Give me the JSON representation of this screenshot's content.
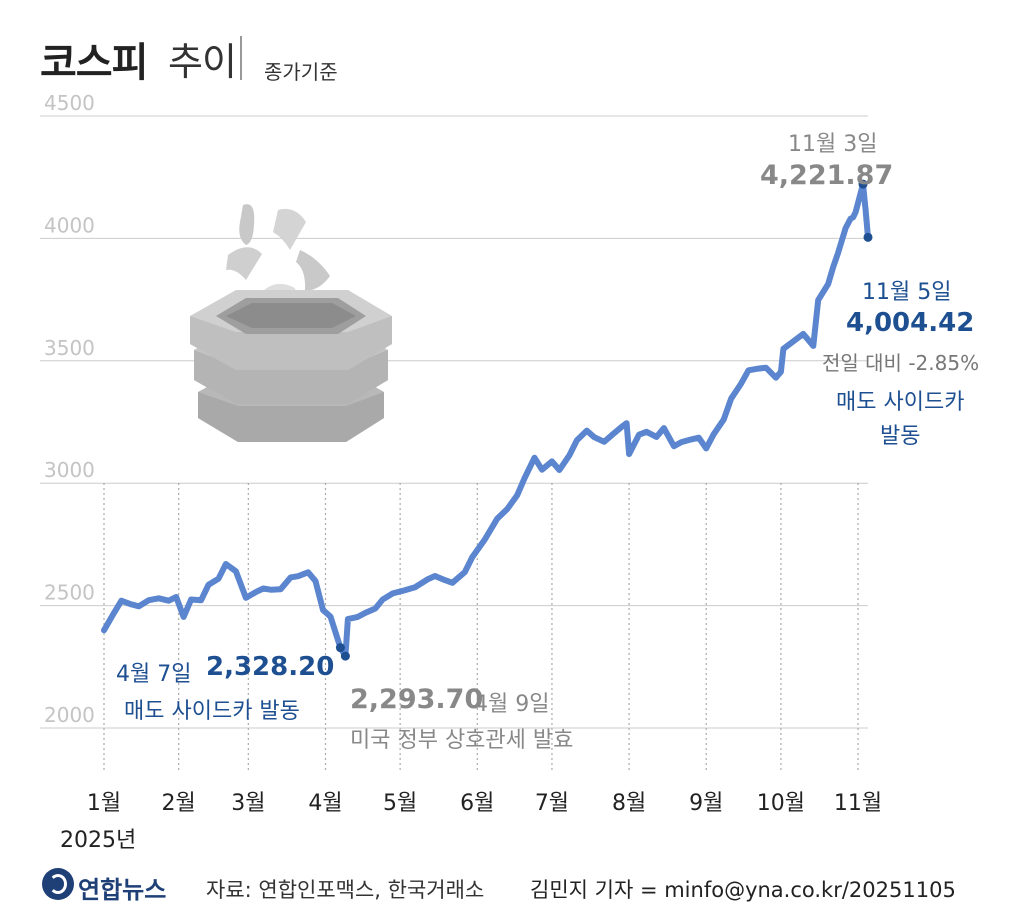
{
  "title": {
    "main": "코스피",
    "sub": "추이",
    "basis": "종가기준"
  },
  "footer": {
    "logo_text": "연합뉴스",
    "source": "자료: 연합인포맥스, 한국거래소",
    "reporter": "김민지 기자 = minfo@yna.co.kr/20251105"
  },
  "annotations": {
    "peak_date": "11월 3일",
    "peak_value": "4,221.87",
    "last_date": "11월 5일",
    "last_value": "4,004.42",
    "last_change": "전일 대비 -2.85%",
    "last_note_1": "매도 사이드카",
    "last_note_2": "발동",
    "apr7_date": "4월 7일",
    "apr7_value": "2,328.20",
    "apr7_note": "매도 사이드카 발동",
    "apr9_value": "2,293.70",
    "apr9_date": "4월 9일",
    "apr9_note": "미국 정부 상호관세 발효"
  },
  "colors": {
    "line": "#5b85cf",
    "marker": "#1d4f91",
    "grid": "#cccccc",
    "axis_text": "#c4c4c4",
    "icon": "#bdbdbd"
  },
  "icon_name": "falling-stacked-boxes-icon",
  "chart_data": {
    "type": "line",
    "title": "코스피 추이",
    "subtitle": "종가기준",
    "ylim": [
      1900,
      4550
    ],
    "yticks": [
      2000,
      2500,
      3000,
      3500,
      4000,
      4500
    ],
    "ytick_labels": [
      "2000",
      "2500",
      "3000",
      "3500",
      "4000",
      "4500"
    ],
    "xlabel": "",
    "ylabel": "",
    "grid": true,
    "month_ticks": [
      {
        "date": "2025-01-02",
        "label": "1월"
      },
      {
        "date": "2025-02-01",
        "label": "2월"
      },
      {
        "date": "2025-03-01",
        "label": "3월"
      },
      {
        "date": "2025-04-01",
        "label": "4월"
      },
      {
        "date": "2025-05-01",
        "label": "5월"
      },
      {
        "date": "2025-06-01",
        "label": "6월"
      },
      {
        "date": "2025-07-01",
        "label": "7월"
      },
      {
        "date": "2025-08-01",
        "label": "8월"
      },
      {
        "date": "2025-09-01",
        "label": "9월"
      },
      {
        "date": "2025-10-01",
        "label": "10월"
      },
      {
        "date": "2025-11-01",
        "label": "11월"
      }
    ],
    "year_label": "2025년",
    "series": [
      {
        "values": [
          [
            "2025-01-02",
            2399
          ],
          [
            "2025-01-06",
            2470
          ],
          [
            "2025-01-09",
            2520
          ],
          [
            "2025-01-13",
            2505
          ],
          [
            "2025-01-16",
            2497
          ],
          [
            "2025-01-20",
            2522
          ],
          [
            "2025-01-24",
            2530
          ],
          [
            "2025-01-28",
            2520
          ],
          [
            "2025-01-31",
            2535
          ],
          [
            "2025-02-03",
            2454
          ],
          [
            "2025-02-06",
            2525
          ],
          [
            "2025-02-10",
            2522
          ],
          [
            "2025-02-13",
            2585
          ],
          [
            "2025-02-17",
            2610
          ],
          [
            "2025-02-20",
            2670
          ],
          [
            "2025-02-24",
            2640
          ],
          [
            "2025-02-28",
            2532
          ],
          [
            "2025-03-04",
            2555
          ],
          [
            "2025-03-07",
            2570
          ],
          [
            "2025-03-10",
            2565
          ],
          [
            "2025-03-14",
            2567
          ],
          [
            "2025-03-18",
            2615
          ],
          [
            "2025-03-21",
            2620
          ],
          [
            "2025-03-25",
            2636
          ],
          [
            "2025-03-28",
            2600
          ],
          [
            "2025-03-31",
            2482
          ],
          [
            "2025-04-03",
            2455
          ],
          [
            "2025-04-07",
            2328.2
          ],
          [
            "2025-04-09",
            2293.7
          ],
          [
            "2025-04-10",
            2445
          ],
          [
            "2025-04-14",
            2454
          ],
          [
            "2025-04-17",
            2470
          ],
          [
            "2025-04-21",
            2488
          ],
          [
            "2025-04-24",
            2525
          ],
          [
            "2025-04-28",
            2550
          ],
          [
            "2025-05-02",
            2560
          ],
          [
            "2025-05-07",
            2575
          ],
          [
            "2025-05-12",
            2607
          ],
          [
            "2025-05-15",
            2621
          ],
          [
            "2025-05-19",
            2604
          ],
          [
            "2025-05-22",
            2593
          ],
          [
            "2025-05-27",
            2637
          ],
          [
            "2025-05-30",
            2698
          ],
          [
            "2025-06-04",
            2770
          ],
          [
            "2025-06-09",
            2855
          ],
          [
            "2025-06-13",
            2894
          ],
          [
            "2025-06-17",
            2950
          ],
          [
            "2025-06-20",
            3021
          ],
          [
            "2025-06-24",
            3104
          ],
          [
            "2025-06-27",
            3055
          ],
          [
            "2025-07-01",
            3089
          ],
          [
            "2025-07-04",
            3054
          ],
          [
            "2025-07-08",
            3114
          ],
          [
            "2025-07-11",
            3175
          ],
          [
            "2025-07-15",
            3215
          ],
          [
            "2025-07-18",
            3188
          ],
          [
            "2025-07-22",
            3169
          ],
          [
            "2025-07-25",
            3196
          ],
          [
            "2025-07-29",
            3230
          ],
          [
            "2025-07-31",
            3245
          ],
          [
            "2025-08-01",
            3119
          ],
          [
            "2025-08-05",
            3198
          ],
          [
            "2025-08-08",
            3210
          ],
          [
            "2025-08-12",
            3189
          ],
          [
            "2025-08-15",
            3225
          ],
          [
            "2025-08-19",
            3151
          ],
          [
            "2025-08-22",
            3168
          ],
          [
            "2025-08-26",
            3179
          ],
          [
            "2025-08-29",
            3186
          ],
          [
            "2025-09-01",
            3142
          ],
          [
            "2025-09-04",
            3200
          ],
          [
            "2025-09-08",
            3260
          ],
          [
            "2025-09-11",
            3345
          ],
          [
            "2025-09-15",
            3407
          ],
          [
            "2025-09-18",
            3461
          ],
          [
            "2025-09-22",
            3468
          ],
          [
            "2025-09-25",
            3472
          ],
          [
            "2025-09-29",
            3431
          ],
          [
            "2025-10-01",
            3455
          ],
          [
            "2025-10-02",
            3549
          ],
          [
            "2025-10-10",
            3610
          ],
          [
            "2025-10-14",
            3561
          ],
          [
            "2025-10-16",
            3748
          ],
          [
            "2025-10-20",
            3814
          ],
          [
            "2025-10-22",
            3883
          ],
          [
            "2025-10-24",
            3941
          ],
          [
            "2025-10-27",
            4042
          ],
          [
            "2025-10-29",
            4081
          ],
          [
            "2025-10-30",
            4086
          ],
          [
            "2025-10-31",
            4107
          ],
          [
            "2025-11-03",
            4221.87
          ],
          [
            "2025-11-04",
            4121
          ],
          [
            "2025-11-05",
            4004.42
          ]
        ]
      }
    ],
    "markers": [
      {
        "date": "2025-04-07",
        "value": 2328.2
      },
      {
        "date": "2025-04-09",
        "value": 2293.7
      },
      {
        "date": "2025-11-03",
        "value": 4221.87
      },
      {
        "date": "2025-11-05",
        "value": 4004.42
      }
    ]
  }
}
